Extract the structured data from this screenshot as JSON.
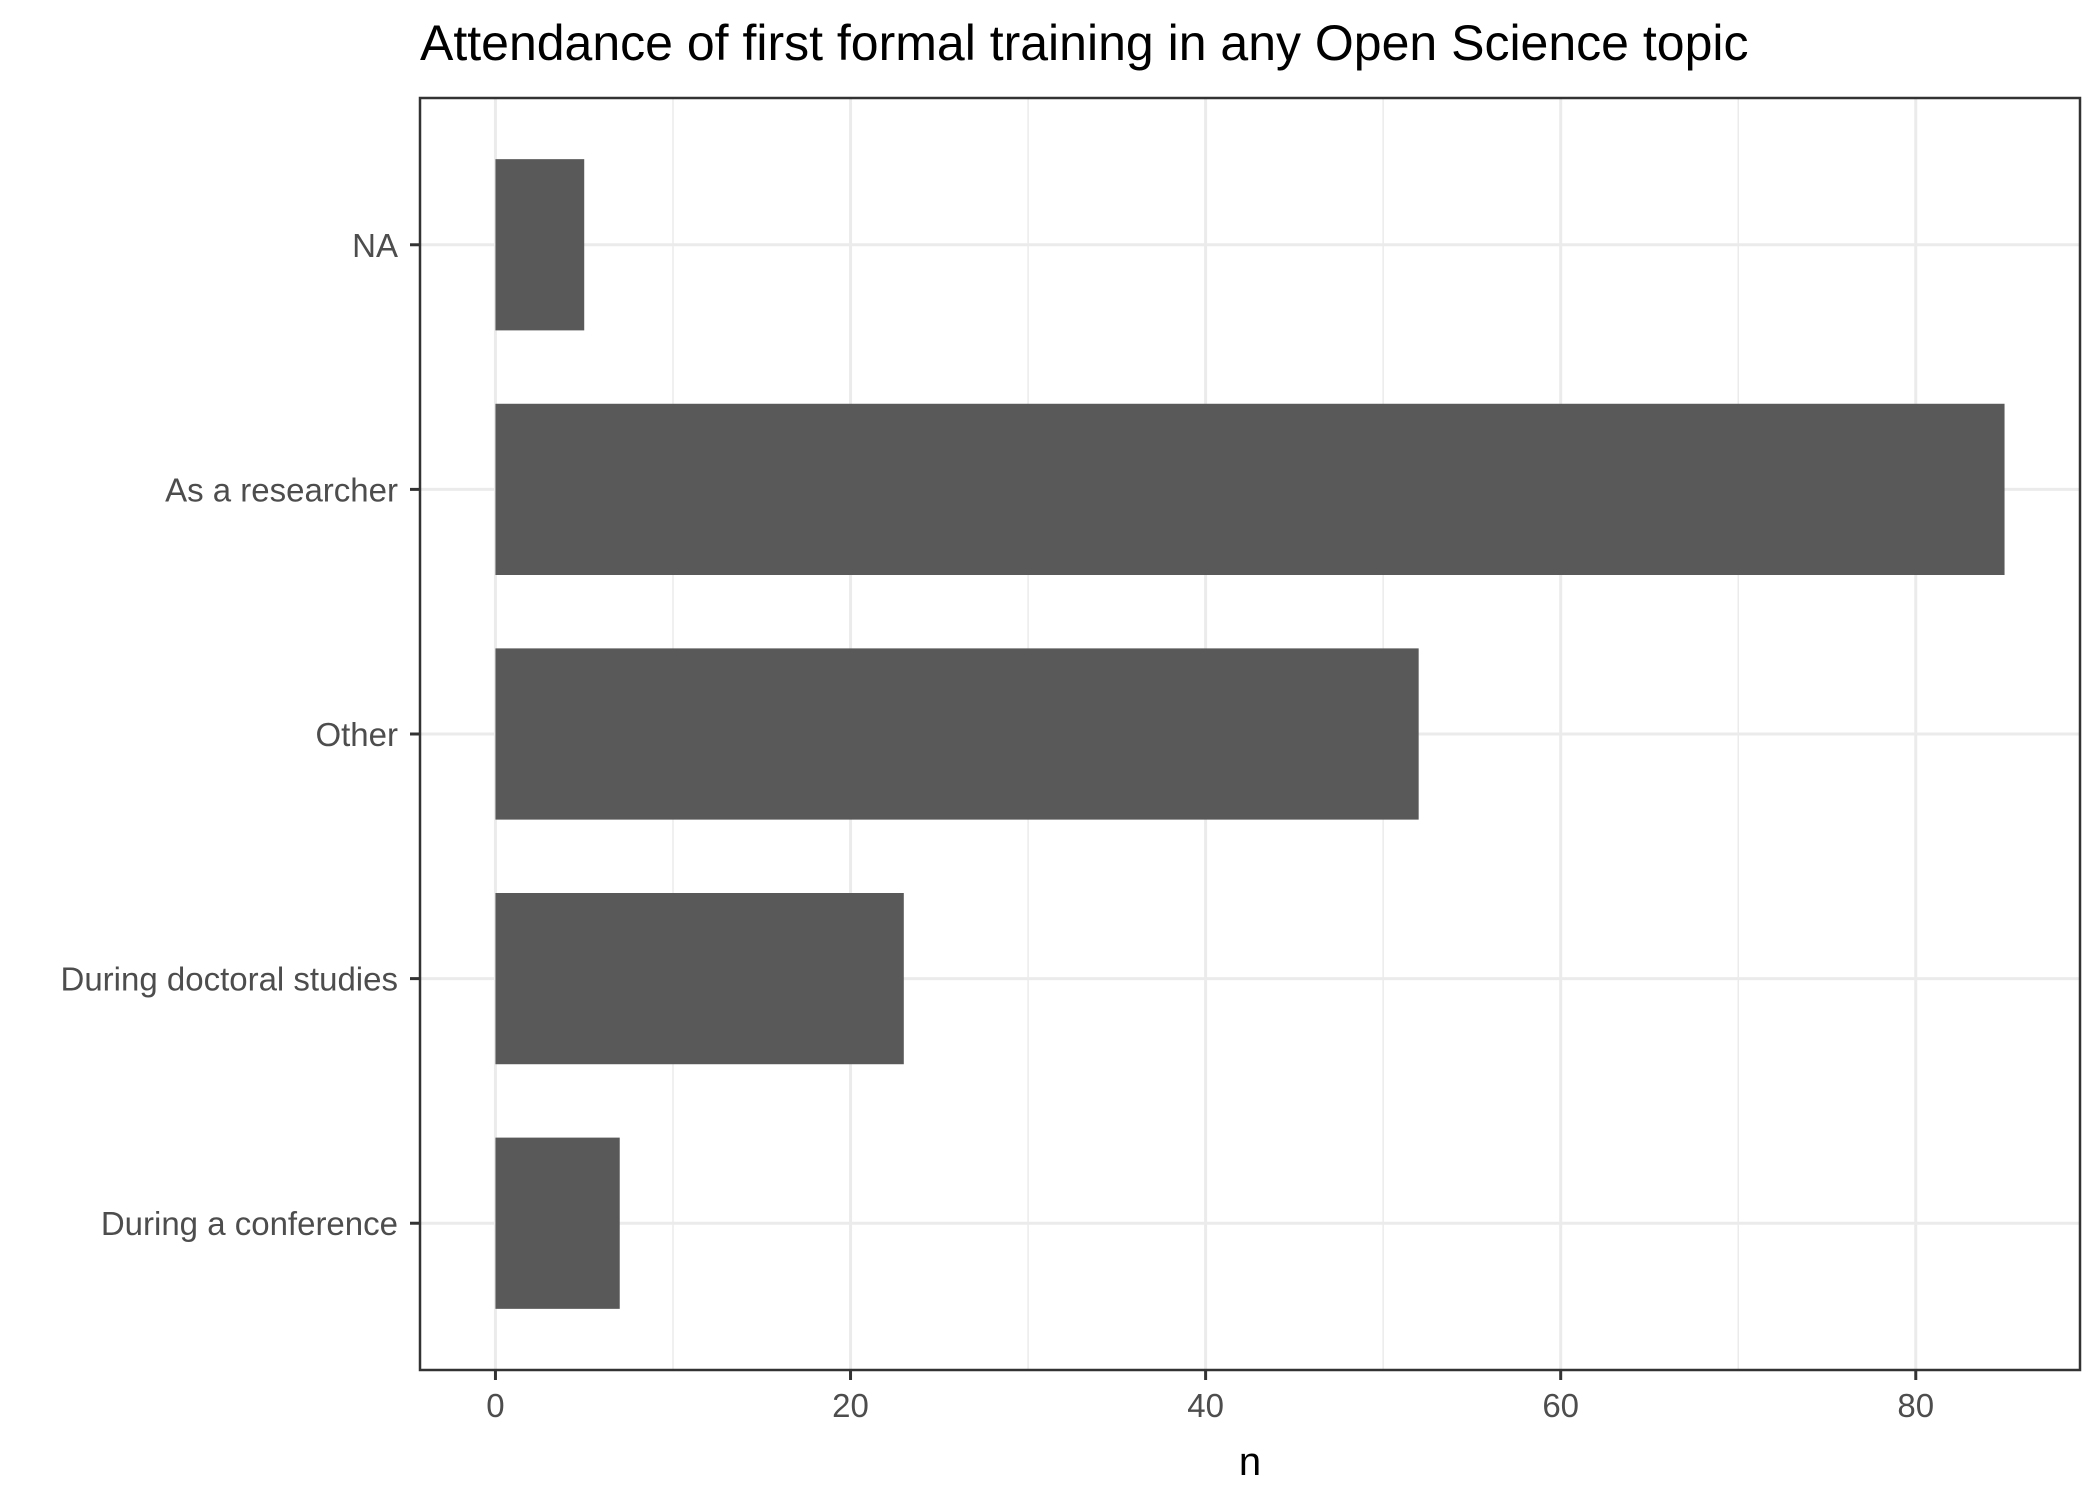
{
  "chart_data": {
    "type": "bar",
    "orientation": "horizontal",
    "title": "Attendance of first formal training in any Open Science topic",
    "xlabel": "n",
    "ylabel": "",
    "categories": [
      "During a conference",
      "During doctoral studies",
      "Other",
      "As a researcher",
      "NA"
    ],
    "values": [
      7,
      23,
      52,
      85,
      5
    ],
    "xlim": [
      -4.25,
      89.25
    ],
    "xticks": [
      0,
      20,
      40,
      60,
      80
    ],
    "grid": true,
    "legend": "none",
    "bar_color": "#595959",
    "grid_color": "#ebebeb",
    "panel_border_color": "#333333"
  }
}
